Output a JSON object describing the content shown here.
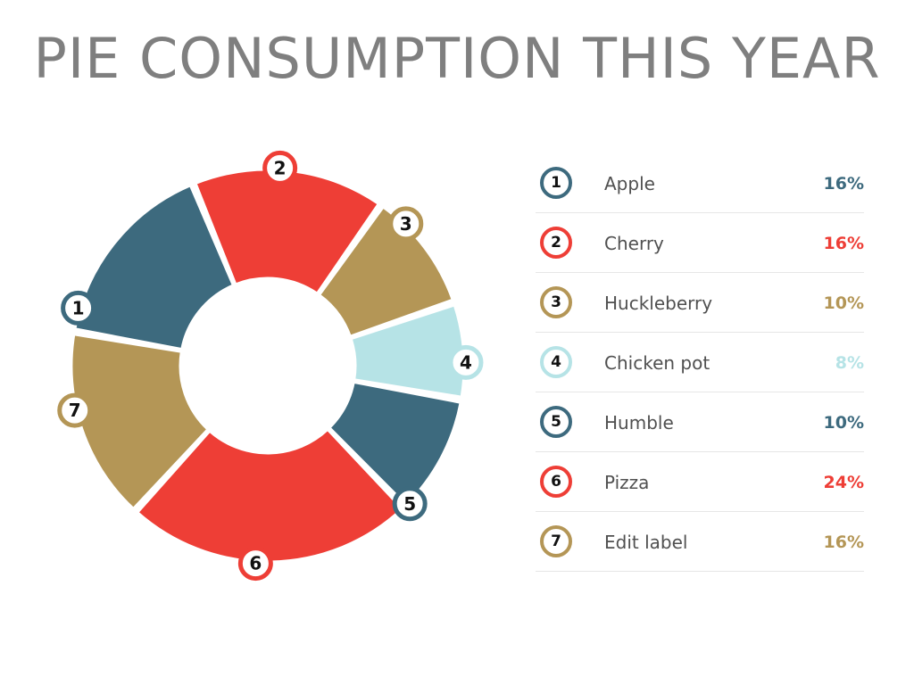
{
  "colors": {
    "teal": "#3d6a7e",
    "red": "#ee3e36",
    "tan": "#b49656",
    "light_blue": "#b6e3e6",
    "title": "#7f7f7f",
    "label": "#505050",
    "divider": "#e6e6e6"
  },
  "chart_data": {
    "type": "pie",
    "style": "donut",
    "title": "PIE CONSUMPTION THIS YEAR",
    "legend_position": "right",
    "slices": [
      {
        "number": "1",
        "label": "Apple",
        "value": 16,
        "value_label": "16%",
        "color": "#3d6a7e"
      },
      {
        "number": "2",
        "label": "Cherry",
        "value": 16,
        "value_label": "16%",
        "color": "#ee3e36"
      },
      {
        "number": "3",
        "label": "Huckleberry",
        "value": 10,
        "value_label": "10%",
        "color": "#b49656"
      },
      {
        "number": "4",
        "label": "Chicken pot",
        "value": 8,
        "value_label": "8%",
        "color": "#b6e3e6"
      },
      {
        "number": "5",
        "label": "Humble",
        "value": 10,
        "value_label": "10%",
        "color": "#3d6a7e"
      },
      {
        "number": "6",
        "label": "Pizza",
        "value": 24,
        "value_label": "24%",
        "color": "#ee3e36"
      },
      {
        "number": "7",
        "label": "Edit label",
        "value": 16,
        "value_label": "16%",
        "color": "#b49656"
      }
    ]
  }
}
